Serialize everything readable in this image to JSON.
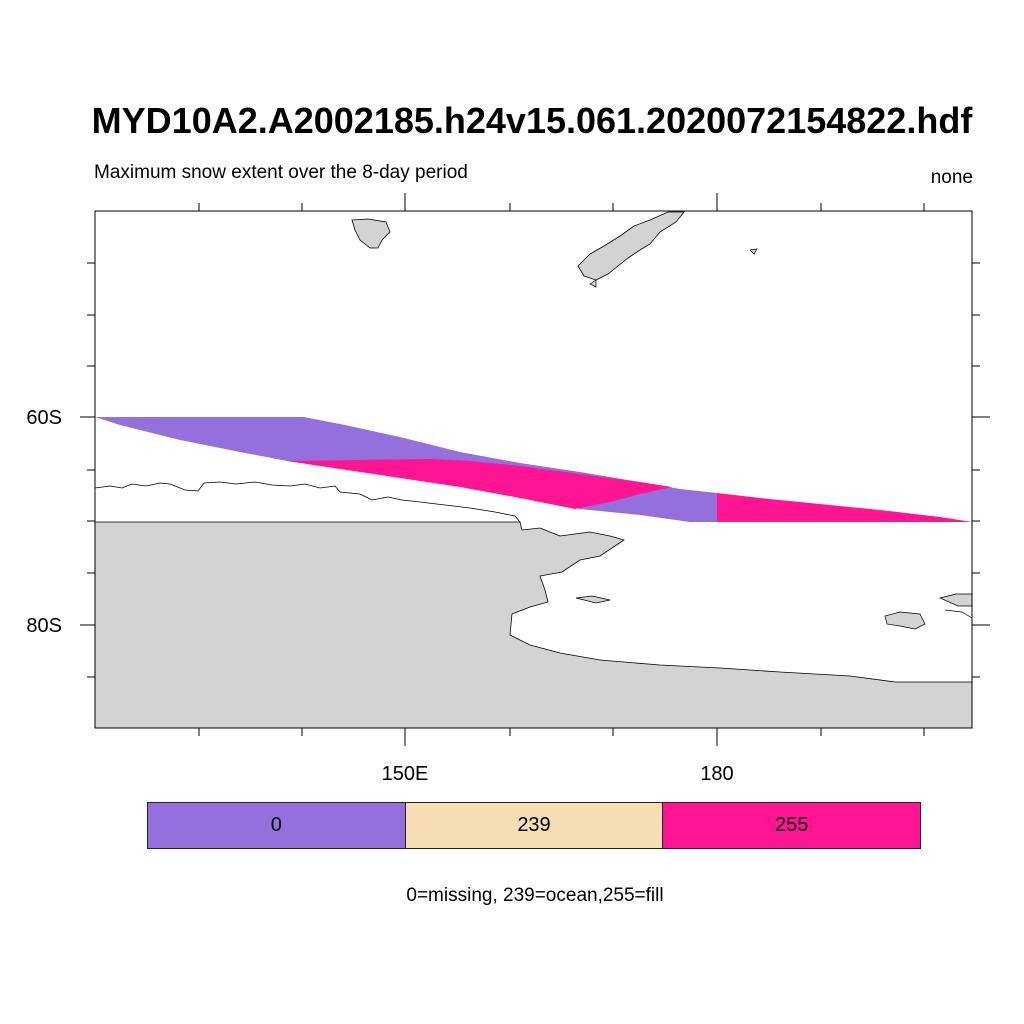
{
  "title": "MYD10A2.A2002185.h24v15.061.2020072154822.hdf",
  "subtitle": "Maximum snow extent over the 8-day period",
  "units": "none",
  "axes": {
    "lat_labels": [
      "60S",
      "80S"
    ],
    "lon_labels": [
      "150E",
      "180"
    ]
  },
  "colors": {
    "missing": "#9370DB",
    "ocean": "#F5DEB3",
    "fill": "#FF1493",
    "land": "#D3D3D3",
    "coast": "#000000"
  },
  "legend": {
    "items": [
      {
        "label": "0",
        "color": "#9370DB"
      },
      {
        "label": "239",
        "color": "#F5DEB3"
      },
      {
        "label": "255",
        "color": "#FF1493"
      }
    ]
  },
  "footnote": "0=missing, 239=ocean,255=fill"
}
